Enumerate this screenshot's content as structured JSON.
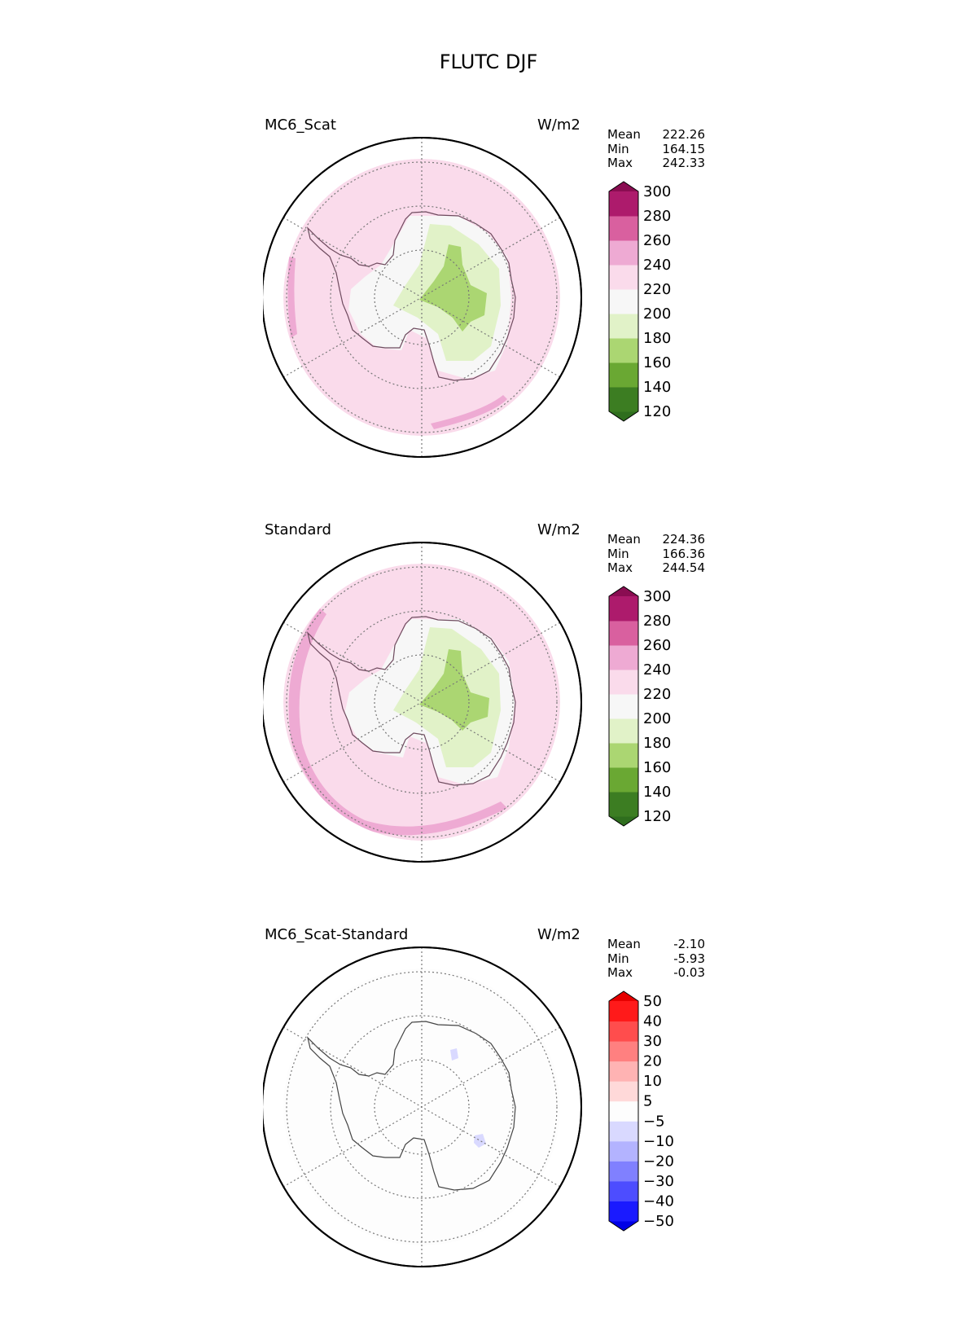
{
  "figure_title": "FLUTC DJF",
  "panels": [
    {
      "title": "MC6_Scat",
      "units": "W/m2",
      "stats": [
        {
          "label": "Mean",
          "value": "222.26"
        },
        {
          "label": "Min",
          "value": "164.15"
        },
        {
          "label": "Max",
          "value": "242.33"
        }
      ],
      "colorbar": {
        "levels": [
          "120",
          "140",
          "160",
          "180",
          "200",
          "220",
          "240",
          "260",
          "280",
          "300"
        ],
        "colors": [
          "#2f6e1e",
          "#3c7d22",
          "#6aa833",
          "#abd672",
          "#e1f2c8",
          "#f7f7f7",
          "#fadbeb",
          "#eeaad3",
          "#d9609f",
          "#ad1b6c",
          "#8a0d52"
        ]
      },
      "map": {
        "ocean_color": "#fadbeb",
        "rim_color": "#eeaad3"
      }
    },
    {
      "title": "Standard",
      "units": "W/m2",
      "stats": [
        {
          "label": "Mean",
          "value": "224.36"
        },
        {
          "label": "Min",
          "value": "166.36"
        },
        {
          "label": "Max",
          "value": "244.54"
        }
      ],
      "colorbar": {
        "levels": [
          "120",
          "140",
          "160",
          "180",
          "200",
          "220",
          "240",
          "260",
          "280",
          "300"
        ],
        "colors": [
          "#2f6e1e",
          "#3c7d22",
          "#6aa833",
          "#abd672",
          "#e1f2c8",
          "#f7f7f7",
          "#fadbeb",
          "#eeaad3",
          "#d9609f",
          "#ad1b6c",
          "#8a0d52"
        ]
      },
      "map": {
        "ocean_color": "#fadbeb",
        "rim_color": "#eeaad3"
      }
    },
    {
      "title": "MC6_Scat-Standard",
      "units": "W/m2",
      "stats": [
        {
          "label": "Mean",
          "value": "-2.10"
        },
        {
          "label": "Min",
          "value": "-5.93"
        },
        {
          "label": "Max",
          "value": "-0.03"
        }
      ],
      "colorbar": {
        "levels": [
          "−50",
          "−40",
          "−30",
          "−20",
          "−10",
          "−5",
          "5",
          "10",
          "20",
          "30",
          "40",
          "50"
        ],
        "colors": [
          "#0000e6",
          "#1a1aff",
          "#4d4dff",
          "#8080ff",
          "#b3b3ff",
          "#d9d9ff",
          "#fdfdfd",
          "#ffd9d9",
          "#ffb3b3",
          "#ff8080",
          "#ff4d4d",
          "#ff1a1a",
          "#e60000"
        ]
      },
      "map": {
        "ocean_color": "#fdfdfd",
        "rim_color": "#fdfdfd"
      }
    }
  ]
}
